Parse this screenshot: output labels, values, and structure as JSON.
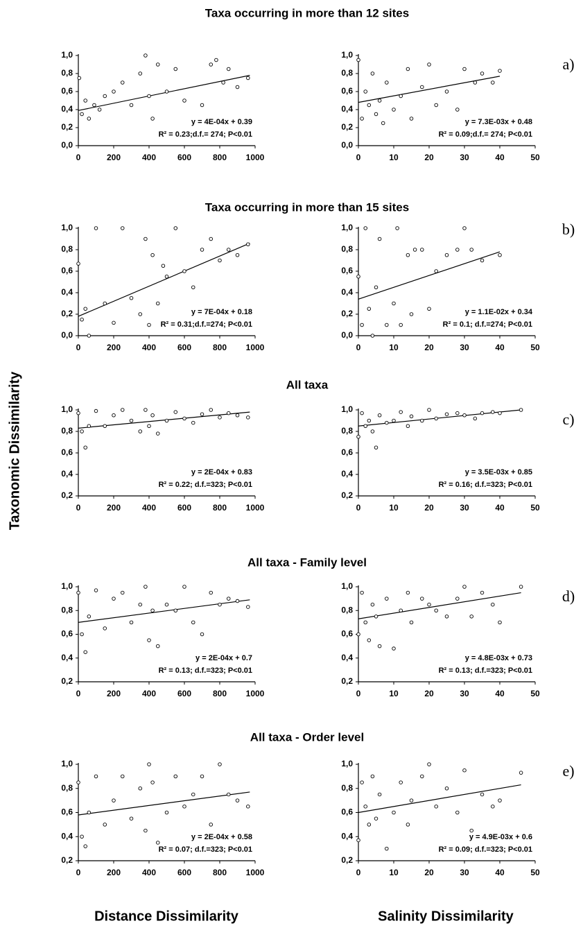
{
  "figure": {
    "y_label": "Taxonomic Dissimilarity",
    "x_labels": [
      "Distance Dissimilarity",
      "Salinity Dissimilarity"
    ],
    "row_titles": [
      "Taxa occurring in more than 12 sites",
      "Taxa occurring in more than 15 sites",
      "All taxa",
      "All taxa - Family level",
      "All taxa - Order level"
    ],
    "panel_labels": [
      "a)",
      "b)",
      "c)",
      "d)",
      "e)"
    ]
  },
  "chart_data": [
    {
      "type": "scatter",
      "xlim": [
        0,
        1000
      ],
      "xticks": [
        0,
        200,
        400,
        600,
        800,
        1000
      ],
      "ylim": [
        0,
        1
      ],
      "yticks": [
        {
          "value": 0,
          "label": "0,0"
        },
        {
          "value": 0.2,
          "label": "0,2"
        },
        {
          "value": 0.4,
          "label": "0,4"
        },
        {
          "value": 0.6,
          "label": "0,6"
        },
        {
          "value": 0.8,
          "label": "0,8"
        },
        {
          "value": 1,
          "label": "1,0"
        }
      ],
      "x": [
        5,
        20,
        40,
        60,
        90,
        120,
        150,
        200,
        250,
        300,
        350,
        380,
        400,
        420,
        450,
        500,
        550,
        600,
        700,
        750,
        780,
        820,
        850,
        900,
        960
      ],
      "values": [
        0.75,
        0.35,
        0.5,
        0.3,
        0.45,
        0.4,
        0.55,
        0.6,
        0.7,
        0.45,
        0.8,
        1.0,
        0.55,
        0.3,
        0.9,
        0.6,
        0.85,
        0.5,
        0.45,
        0.9,
        0.95,
        0.7,
        0.85,
        0.65,
        0.75
      ],
      "fit": {
        "x": [
          0,
          970
        ],
        "y": [
          0.39,
          0.78
        ]
      },
      "annotations": [
        "y = 4E-04x + 0.39",
        "R² = 0.23;d.f.= 274; P<0.01"
      ]
    },
    {
      "type": "scatter",
      "xlim": [
        0,
        50
      ],
      "xticks": [
        0,
        10,
        20,
        30,
        40,
        50
      ],
      "ylim": [
        0,
        1
      ],
      "yticks": [
        {
          "value": 0,
          "label": "0,0"
        },
        {
          "value": 0.2,
          "label": "0,2"
        },
        {
          "value": 0.4,
          "label": "0,4"
        },
        {
          "value": 0.6,
          "label": "0,6"
        },
        {
          "value": 0.8,
          "label": "0,8"
        },
        {
          "value": 1,
          "label": "1,0"
        }
      ],
      "x": [
        0,
        1,
        2,
        3,
        4,
        5,
        6,
        7,
        8,
        10,
        12,
        14,
        15,
        18,
        20,
        22,
        25,
        28,
        30,
        33,
        35,
        38,
        40
      ],
      "values": [
        0.95,
        0.3,
        0.6,
        0.45,
        0.8,
        0.35,
        0.5,
        0.25,
        0.7,
        0.4,
        0.55,
        0.85,
        0.3,
        0.65,
        0.9,
        0.45,
        0.6,
        0.4,
        0.85,
        0.7,
        0.8,
        0.7,
        0.83
      ],
      "fit": {
        "x": [
          0,
          40
        ],
        "y": [
          0.48,
          0.77
        ]
      },
      "annotations": [
        "y = 7.3E-03x + 0.48",
        "R² = 0.09;d.f.= 274; P<0.01"
      ]
    },
    {
      "type": "scatter",
      "xlim": [
        0,
        1000
      ],
      "xticks": [
        0,
        200,
        400,
        600,
        800,
        1000
      ],
      "ylim": [
        0,
        1
      ],
      "yticks": [
        {
          "value": 0,
          "label": "0,0"
        },
        {
          "value": 0.2,
          "label": "0,2"
        },
        {
          "value": 0.4,
          "label": "0,4"
        },
        {
          "value": 0.6,
          "label": "0,6"
        },
        {
          "value": 0.8,
          "label": "0,8"
        },
        {
          "value": 1,
          "label": "1,0"
        }
      ],
      "x": [
        0,
        20,
        40,
        60,
        100,
        150,
        200,
        250,
        300,
        350,
        380,
        400,
        420,
        450,
        480,
        500,
        550,
        600,
        650,
        700,
        750,
        800,
        850,
        900,
        960
      ],
      "values": [
        0.67,
        0.15,
        0.25,
        0.0,
        1.0,
        0.3,
        0.12,
        1.0,
        0.35,
        0.2,
        0.9,
        0.1,
        0.75,
        0.3,
        0.65,
        0.55,
        1.0,
        0.6,
        0.45,
        0.8,
        0.9,
        0.7,
        0.8,
        0.75,
        0.85
      ],
      "fit": {
        "x": [
          0,
          970
        ],
        "y": [
          0.18,
          0.86
        ]
      },
      "annotations": [
        "y = 7E-04x + 0.18",
        "R² = 0.31;d.f.=274; P<0.01"
      ]
    },
    {
      "type": "scatter",
      "xlim": [
        0,
        50
      ],
      "xticks": [
        0,
        10,
        20,
        30,
        40,
        50
      ],
      "ylim": [
        0,
        1
      ],
      "yticks": [
        {
          "value": 0,
          "label": "0,0"
        },
        {
          "value": 0.2,
          "label": "0,2"
        },
        {
          "value": 0.4,
          "label": "0,4"
        },
        {
          "value": 0.6,
          "label": "0,6"
        },
        {
          "value": 0.8,
          "label": "0,8"
        },
        {
          "value": 1,
          "label": "1,0"
        }
      ],
      "x": [
        0,
        1,
        2,
        3,
        4,
        5,
        6,
        8,
        10,
        11,
        12,
        14,
        15,
        16,
        18,
        20,
        22,
        25,
        28,
        30,
        32,
        35,
        40
      ],
      "values": [
        0.55,
        0.1,
        1.0,
        0.25,
        0.0,
        0.45,
        0.9,
        0.1,
        0.3,
        1.0,
        0.1,
        0.75,
        0.2,
        0.8,
        0.8,
        0.25,
        0.6,
        0.75,
        0.8,
        1.0,
        0.8,
        0.7,
        0.75
      ],
      "fit": {
        "x": [
          0,
          40
        ],
        "y": [
          0.34,
          0.78
        ]
      },
      "annotations": [
        "y = 1.1E-02x + 0.34",
        "R² = 0.1; d.f.=274; P<0.01"
      ]
    },
    {
      "type": "scatter",
      "xlim": [
        0,
        1000
      ],
      "xticks": [
        0,
        200,
        400,
        600,
        800,
        1000
      ],
      "ylim": [
        0.2,
        1
      ],
      "yticks": [
        {
          "value": 0.2,
          "label": "0,2"
        },
        {
          "value": 0.4,
          "label": "0,4"
        },
        {
          "value": 0.6,
          "label": "0,6"
        },
        {
          "value": 0.8,
          "label": "0,8"
        },
        {
          "value": 1,
          "label": "1,0"
        }
      ],
      "x": [
        0,
        20,
        40,
        60,
        100,
        150,
        200,
        250,
        300,
        350,
        380,
        400,
        420,
        450,
        500,
        550,
        600,
        650,
        700,
        750,
        800,
        850,
        900,
        960
      ],
      "values": [
        0.97,
        0.8,
        0.65,
        0.85,
        0.99,
        0.85,
        0.95,
        1.0,
        0.9,
        0.8,
        1.0,
        0.85,
        0.95,
        0.78,
        0.9,
        0.98,
        0.92,
        0.88,
        0.96,
        1.0,
        0.93,
        0.97,
        0.95,
        0.93
      ],
      "fit": {
        "x": [
          0,
          970
        ],
        "y": [
          0.83,
          0.98
        ]
      },
      "annotations": [
        "y = 2E-04x + 0.83",
        "R² = 0.22; d.f.=323; P<0.01"
      ]
    },
    {
      "type": "scatter",
      "xlim": [
        0,
        50
      ],
      "xticks": [
        0,
        10,
        20,
        30,
        40,
        50
      ],
      "ylim": [
        0.2,
        1
      ],
      "yticks": [
        {
          "value": 0.2,
          "label": "0,2"
        },
        {
          "value": 0.4,
          "label": "0,4"
        },
        {
          "value": 0.6,
          "label": "0,6"
        },
        {
          "value": 0.8,
          "label": "0,8"
        },
        {
          "value": 1,
          "label": "1,0"
        }
      ],
      "x": [
        0,
        1,
        2,
        3,
        4,
        5,
        6,
        8,
        10,
        12,
        14,
        15,
        18,
        20,
        22,
        25,
        28,
        30,
        33,
        35,
        38,
        40,
        46
      ],
      "values": [
        0.75,
        0.97,
        0.85,
        0.9,
        0.8,
        0.65,
        0.95,
        0.88,
        0.9,
        0.98,
        0.85,
        0.94,
        0.9,
        1.0,
        0.92,
        0.96,
        0.97,
        0.95,
        0.92,
        0.97,
        0.98,
        0.97,
        1.0
      ],
      "fit": {
        "x": [
          0,
          46
        ],
        "y": [
          0.85,
          1.0
        ]
      },
      "annotations": [
        "y = 3.5E-03x + 0.85",
        "R² = 0.16; d.f.=323; P<0.01"
      ]
    },
    {
      "type": "scatter",
      "xlim": [
        0,
        1000
      ],
      "xticks": [
        0,
        200,
        400,
        600,
        800,
        1000
      ],
      "ylim": [
        0.2,
        1
      ],
      "yticks": [
        {
          "value": 0.2,
          "label": "0,2"
        },
        {
          "value": 0.4,
          "label": "0,4"
        },
        {
          "value": 0.6,
          "label": "0,6"
        },
        {
          "value": 0.8,
          "label": "0,8"
        },
        {
          "value": 1,
          "label": "1,0"
        }
      ],
      "x": [
        0,
        20,
        40,
        60,
        100,
        150,
        200,
        250,
        300,
        350,
        380,
        400,
        420,
        450,
        500,
        550,
        600,
        650,
        700,
        750,
        800,
        850,
        900,
        960
      ],
      "values": [
        0.95,
        0.6,
        0.45,
        0.75,
        0.97,
        0.65,
        0.9,
        0.95,
        0.7,
        0.85,
        1.0,
        0.55,
        0.8,
        0.5,
        0.85,
        0.8,
        1.0,
        0.7,
        0.6,
        0.95,
        0.85,
        0.9,
        0.88,
        0.83
      ],
      "fit": {
        "x": [
          0,
          970
        ],
        "y": [
          0.7,
          0.89
        ]
      },
      "annotations": [
        "y = 2E-04x + 0.7",
        "R² = 0.13; d.f.=323; P<0.01"
      ]
    },
    {
      "type": "scatter",
      "xlim": [
        0,
        50
      ],
      "xticks": [
        0,
        10,
        20,
        30,
        40,
        50
      ],
      "ylim": [
        0.2,
        1
      ],
      "yticks": [
        {
          "value": 0.2,
          "label": "0,2"
        },
        {
          "value": 0.4,
          "label": "0,4"
        },
        {
          "value": 0.6,
          "label": "0,6"
        },
        {
          "value": 0.8,
          "label": "0,8"
        },
        {
          "value": 1,
          "label": "1,0"
        }
      ],
      "x": [
        0,
        1,
        2,
        3,
        4,
        5,
        6,
        8,
        10,
        12,
        14,
        15,
        18,
        20,
        22,
        25,
        28,
        30,
        32,
        35,
        38,
        40,
        46
      ],
      "values": [
        0.6,
        0.95,
        0.7,
        0.55,
        0.85,
        0.75,
        0.5,
        0.9,
        0.48,
        0.8,
        0.95,
        0.7,
        0.9,
        0.85,
        0.8,
        0.75,
        0.9,
        1.0,
        0.75,
        0.95,
        0.85,
        0.7,
        1.0
      ],
      "fit": {
        "x": [
          0,
          46
        ],
        "y": [
          0.73,
          0.95
        ]
      },
      "annotations": [
        "y = 4.8E-03x + 0.73",
        "R² = 0.13; d.f.=323; P<0.01"
      ]
    },
    {
      "type": "scatter",
      "xlim": [
        0,
        1000
      ],
      "xticks": [
        0,
        200,
        400,
        600,
        800,
        1000
      ],
      "ylim": [
        0.2,
        1
      ],
      "yticks": [
        {
          "value": 0.2,
          "label": "0,2"
        },
        {
          "value": 0.4,
          "label": "0,4"
        },
        {
          "value": 0.6,
          "label": "0,6"
        },
        {
          "value": 0.8,
          "label": "0,8"
        },
        {
          "value": 1,
          "label": "1,0"
        }
      ],
      "x": [
        0,
        20,
        40,
        60,
        100,
        150,
        200,
        250,
        300,
        350,
        380,
        400,
        420,
        450,
        500,
        550,
        600,
        650,
        700,
        750,
        800,
        850,
        900,
        960
      ],
      "values": [
        0.85,
        0.4,
        0.32,
        0.6,
        0.9,
        0.5,
        0.7,
        0.9,
        0.55,
        0.8,
        0.45,
        1.0,
        0.85,
        0.35,
        0.6,
        0.9,
        0.65,
        0.75,
        0.9,
        0.5,
        1.0,
        0.75,
        0.7,
        0.65
      ],
      "fit": {
        "x": [
          0,
          970
        ],
        "y": [
          0.58,
          0.77
        ]
      },
      "annotations": [
        "y = 2E-04x + 0.58",
        "R² = 0.07; d.f.=323; P<0.01"
      ]
    },
    {
      "type": "scatter",
      "xlim": [
        0,
        50
      ],
      "xticks": [
        0,
        10,
        20,
        30,
        40,
        50
      ],
      "ylim": [
        0.2,
        1
      ],
      "yticks": [
        {
          "value": 0.2,
          "label": "0,2"
        },
        {
          "value": 0.4,
          "label": "0,4"
        },
        {
          "value": 0.6,
          "label": "0,6"
        },
        {
          "value": 0.8,
          "label": "0,8"
        },
        {
          "value": 1,
          "label": "1,0"
        }
      ],
      "x": [
        0,
        1,
        2,
        3,
        4,
        5,
        6,
        8,
        10,
        12,
        14,
        15,
        18,
        20,
        22,
        25,
        28,
        30,
        32,
        35,
        38,
        40,
        46
      ],
      "values": [
        0.37,
        0.85,
        0.65,
        0.5,
        0.9,
        0.55,
        0.75,
        0.3,
        0.6,
        0.85,
        0.5,
        0.7,
        0.9,
        1.0,
        0.65,
        0.8,
        0.6,
        0.95,
        0.45,
        0.75,
        0.65,
        0.7,
        0.93
      ],
      "fit": {
        "x": [
          0,
          46
        ],
        "y": [
          0.6,
          0.83
        ]
      },
      "annotations": [
        "y = 4.9E-03x + 0.6",
        "R² = 0.09; d.f.=323; P<0.01"
      ]
    }
  ]
}
